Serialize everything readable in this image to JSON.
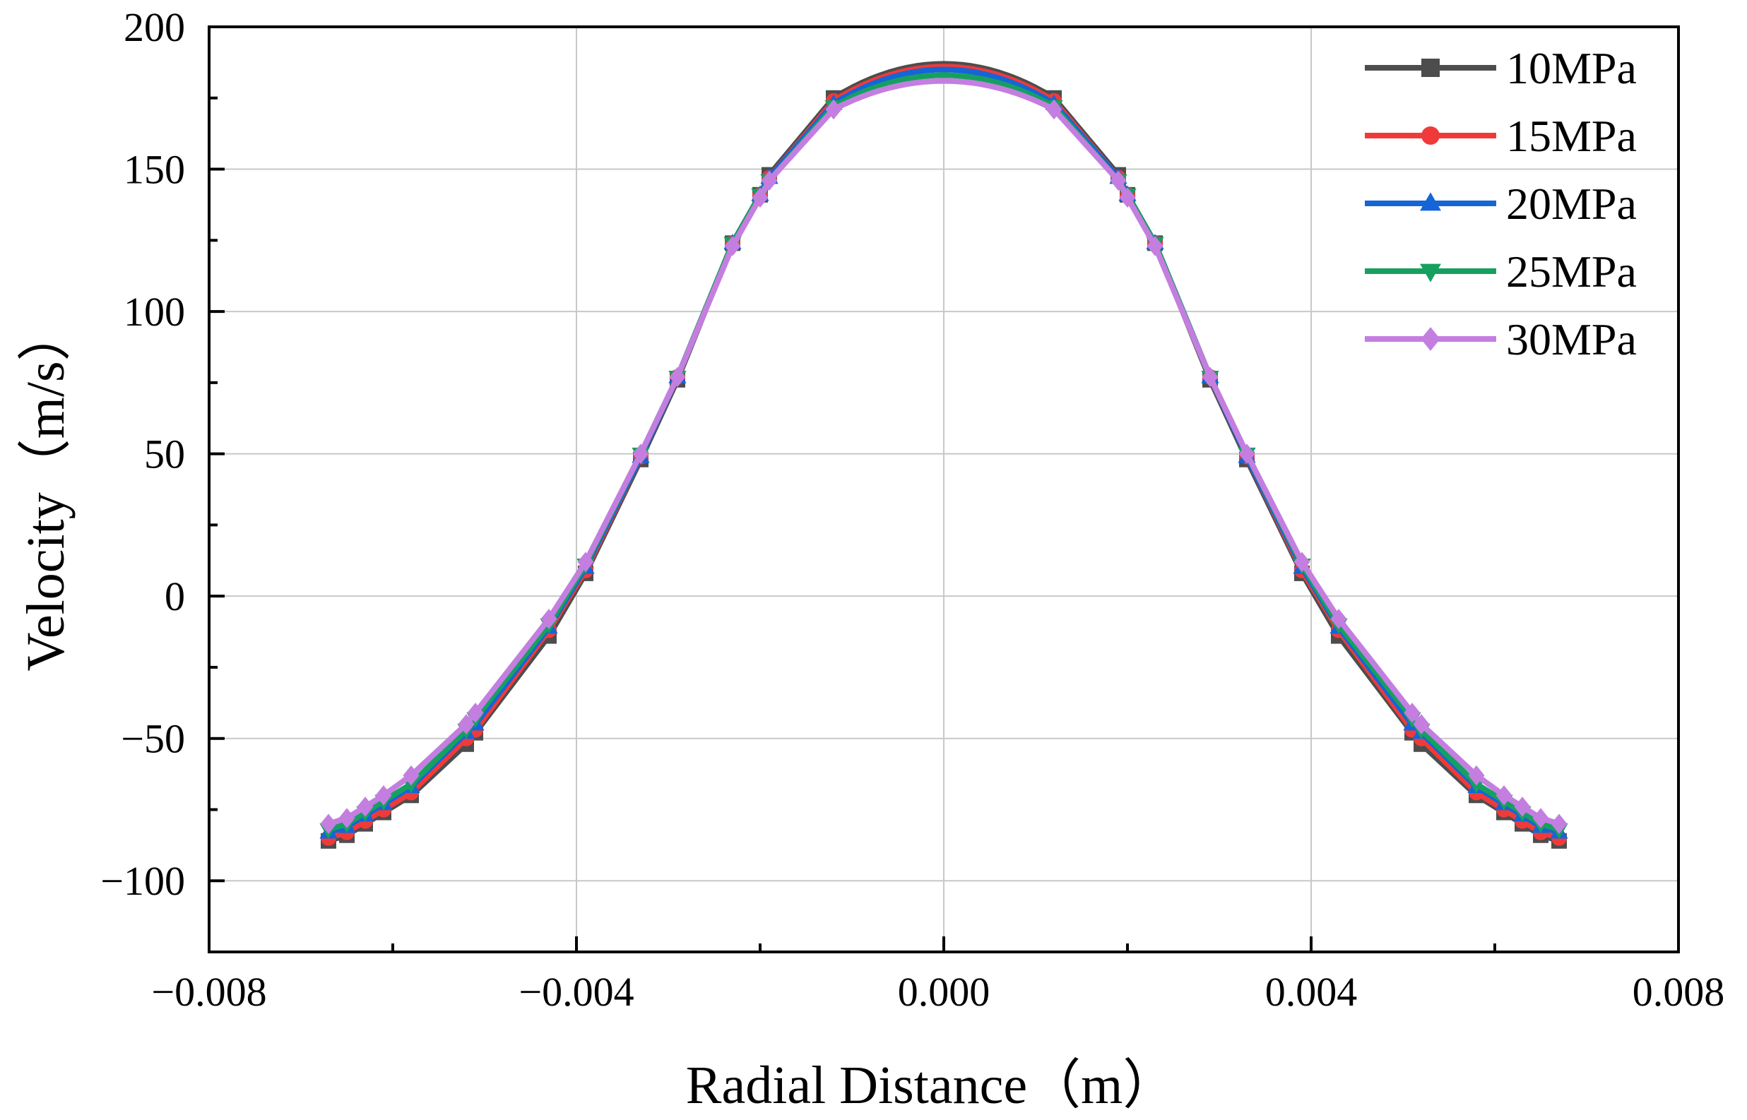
{
  "chart_data": {
    "type": "line",
    "title": "",
    "xlabel": "Radial Distance（m）",
    "ylabel": "Velocity（m/s）",
    "xlim": [
      -0.008,
      0.008
    ],
    "ylim": [
      -125,
      200
    ],
    "grid": true,
    "legend_position": "top-right",
    "x_ticks": [
      -0.008,
      -0.004,
      0.0,
      0.004,
      0.008
    ],
    "x_tick_labels": [
      "−0.008",
      "−0.004",
      "0.000",
      "0.004",
      "0.008"
    ],
    "y_ticks": [
      -100,
      -50,
      0,
      50,
      100,
      150,
      200
    ],
    "y_tick_labels": [
      "−100",
      "−50",
      "0",
      "50",
      "100",
      "150",
      "200"
    ],
    "x": [
      -0.0067,
      -0.0065,
      -0.0063,
      -0.0061,
      -0.0058,
      -0.0052,
      -0.0051,
      -0.0043,
      -0.0039,
      -0.0033,
      -0.0029,
      -0.0023,
      -0.002,
      -0.0019,
      -0.0012,
      0.0,
      0.0012,
      0.0019,
      0.002,
      0.0023,
      0.0029,
      0.0033,
      0.0039,
      0.0043,
      0.0051,
      0.0052,
      0.0058,
      0.0061,
      0.0063,
      0.0065,
      0.0067
    ],
    "series": [
      {
        "name": "10MPa",
        "color": "#4d4d4d",
        "marker": "square",
        "peak": 187,
        "values": [
          -86,
          -84,
          -80,
          -76,
          -70,
          -52,
          -48,
          -14,
          8,
          48,
          76,
          124,
          141,
          148,
          175,
          null,
          175,
          148,
          141,
          124,
          76,
          48,
          8,
          -14,
          -48,
          -52,
          -70,
          -76,
          -80,
          -84,
          -86
        ]
      },
      {
        "name": "15MPa",
        "color": "#f03a3a",
        "marker": "circle",
        "peak": 186,
        "values": [
          -85,
          -83,
          -79,
          -75,
          -69,
          -50,
          -47,
          -12,
          9,
          49,
          77,
          124,
          141,
          147,
          174,
          null,
          174,
          147,
          141,
          124,
          77,
          49,
          9,
          -12,
          -47,
          -50,
          -69,
          -75,
          -79,
          -83,
          -85
        ]
      },
      {
        "name": "20MPa",
        "color": "#1565d8",
        "marker": "triangle-up",
        "peak": 185,
        "values": [
          -83,
          -81,
          -77,
          -73,
          -67,
          -48,
          -45,
          -11,
          10,
          49,
          77,
          124,
          141,
          147,
          173,
          null,
          173,
          147,
          141,
          124,
          77,
          49,
          10,
          -11,
          -45,
          -48,
          -67,
          -73,
          -77,
          -81,
          -83
        ]
      },
      {
        "name": "25MPa",
        "color": "#16a060",
        "marker": "triangle-down",
        "peak": 183,
        "values": [
          -82,
          -80,
          -76,
          -72,
          -66,
          -47,
          -43,
          -10,
          11,
          50,
          77,
          124,
          141,
          146,
          172,
          null,
          172,
          146,
          141,
          124,
          77,
          50,
          11,
          -10,
          -43,
          -47,
          -66,
          -72,
          -76,
          -80,
          -82
        ]
      },
      {
        "name": "30MPa",
        "color": "#c47ee0",
        "marker": "diamond",
        "peak": 181,
        "values": [
          -80,
          -78,
          -74,
          -70,
          -63,
          -45,
          -41,
          -8,
          12,
          50,
          77,
          123,
          140,
          146,
          171,
          null,
          171,
          146,
          140,
          123,
          77,
          50,
          12,
          -8,
          -41,
          -45,
          -63,
          -70,
          -74,
          -78,
          -80
        ]
      }
    ]
  }
}
